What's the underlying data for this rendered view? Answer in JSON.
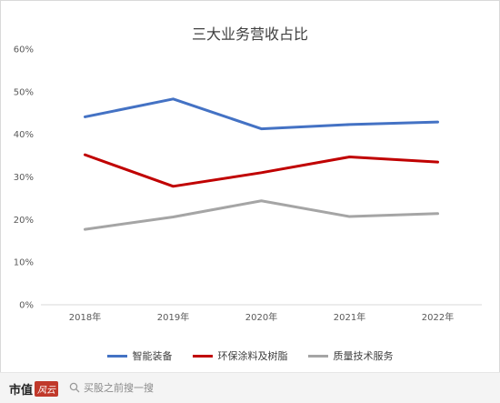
{
  "chart_data": {
    "type": "line",
    "title": "三大业务营收占比",
    "categories": [
      "2018年",
      "2019年",
      "2020年",
      "2021年",
      "2022年"
    ],
    "ylim": [
      0,
      60
    ],
    "yticks": [
      "0%",
      "10%",
      "20%",
      "30%",
      "40%",
      "50%",
      "60%"
    ],
    "ytick_values": [
      0,
      10,
      20,
      30,
      40,
      50,
      60
    ],
    "grid": false,
    "legend_position": "bottom",
    "series": [
      {
        "name": "智能装备",
        "color": "#4472c4",
        "values": [
          44.1,
          48.3,
          41.3,
          42.3,
          42.9
        ]
      },
      {
        "name": "环保涂料及树脂",
        "color": "#c00000",
        "values": [
          35.2,
          27.8,
          31.0,
          34.7,
          33.5
        ]
      },
      {
        "name": "质量技术服务",
        "color": "#a5a5a5",
        "values": [
          17.7,
          20.6,
          24.4,
          20.7,
          21.4
        ]
      }
    ]
  },
  "footer": {
    "brand_main": "市值",
    "brand_badge": "风云",
    "search_text": "买股之前搜一搜"
  }
}
